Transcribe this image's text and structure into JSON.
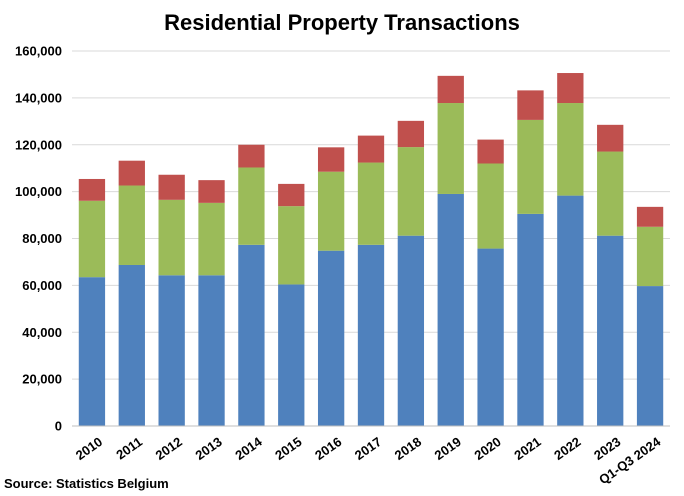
{
  "chart_data": {
    "type": "bar",
    "stacked": true,
    "title": "Residential Property Transactions",
    "xlabel": "",
    "ylabel": "",
    "categories": [
      "2010",
      "2011",
      "2012",
      "2013",
      "2014",
      "2015",
      "2016",
      "2017",
      "2018",
      "2019",
      "2020",
      "2021",
      "2022",
      "2023",
      "Q1-Q3 2024"
    ],
    "series": [
      {
        "color": "#4f81bd",
        "values": [
          63500,
          68700,
          64300,
          64300,
          77300,
          60400,
          74800,
          77300,
          81200,
          99000,
          75700,
          90500,
          98300,
          81200,
          59700
        ]
      },
      {
        "color": "#9bbb59",
        "values": [
          32600,
          33900,
          32200,
          30900,
          33000,
          33400,
          33700,
          35100,
          37800,
          38800,
          36300,
          40100,
          39500,
          35900,
          25300
        ]
      },
      {
        "color": "#c0504d",
        "values": [
          9300,
          10600,
          10700,
          9700,
          9700,
          9500,
          10400,
          11500,
          11200,
          11600,
          10200,
          12600,
          12800,
          11400,
          8500
        ]
      }
    ],
    "ylim": [
      0,
      160000
    ],
    "yticks": [
      0,
      20000,
      40000,
      60000,
      80000,
      100000,
      120000,
      140000,
      160000
    ],
    "ytick_labels": [
      "0",
      "20,000",
      "40,000",
      "60,000",
      "80,000",
      "100,000",
      "120,000",
      "140,000",
      "160,000"
    ],
    "grid": true,
    "legend": "none"
  },
  "source_note": "Source: Statistics Belgium"
}
